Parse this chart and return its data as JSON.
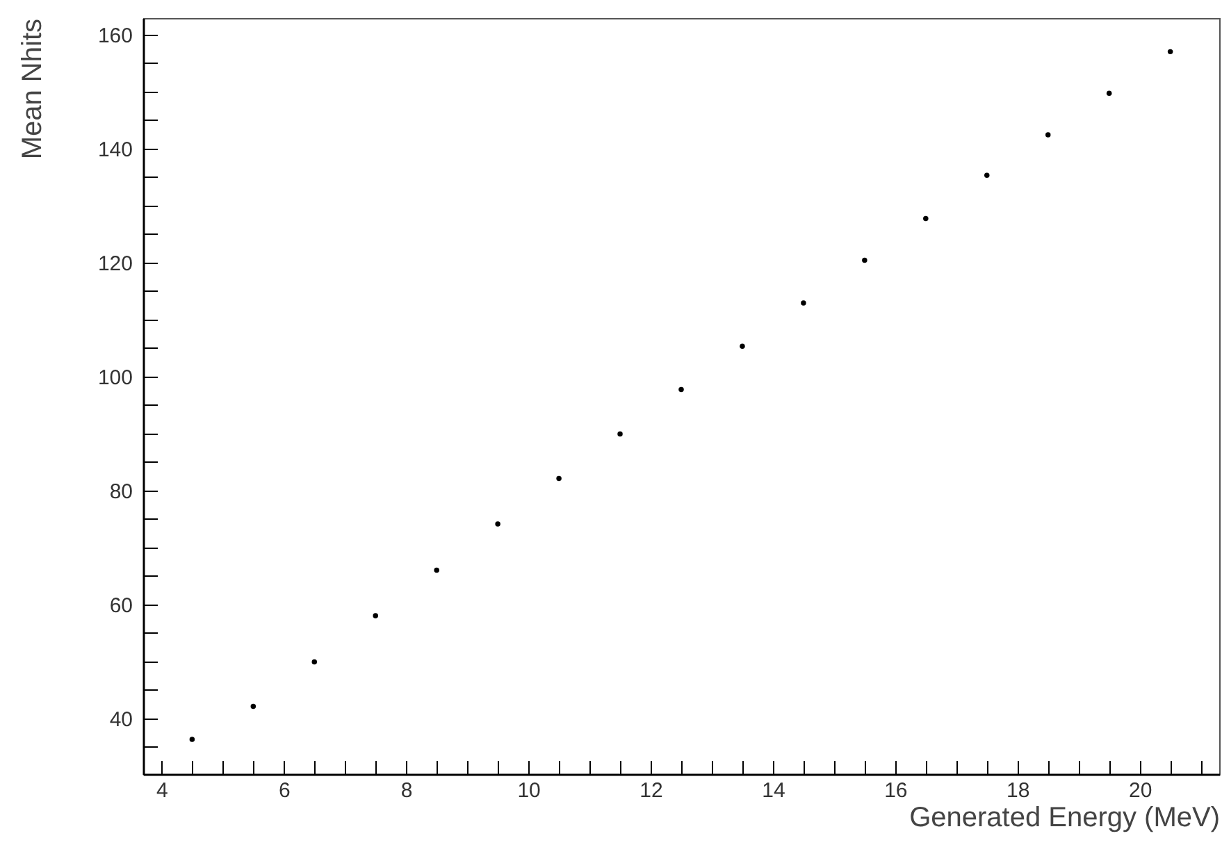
{
  "chart_data": {
    "type": "scatter",
    "xlabel": "Generated Energy (MeV)",
    "ylabel": "Mean Nhits",
    "x": [
      4.5,
      5.5,
      6.5,
      7.5,
      8.5,
      9.5,
      10.5,
      11.5,
      12.5,
      13.5,
      14.5,
      15.5,
      16.5,
      17.5,
      18.5,
      19.5,
      20.5
    ],
    "series": [
      {
        "color": "#000000",
        "values": [
          36.3,
          42.1,
          49.9,
          58.0,
          66.0,
          74.1,
          82.1,
          89.9,
          97.7,
          105.3,
          112.9,
          120.4,
          127.7,
          135.3,
          142.4,
          149.7,
          157.0
        ]
      }
    ],
    "xlim": [
      3.7,
      21.3
    ],
    "ylim": [
      30.2,
      162.9
    ],
    "xticks": [
      4,
      {
        "value": 4.5,
        "label": null
      },
      {
        "value": 5,
        "label": null
      },
      {
        "value": 5.5,
        "label": null
      },
      6,
      {
        "value": 6.5,
        "label": null
      },
      {
        "value": 7,
        "label": null
      },
      {
        "value": 7.5,
        "label": null
      },
      8,
      {
        "value": 8.5,
        "label": null
      },
      {
        "value": 9,
        "label": null
      },
      {
        "value": 9.5,
        "label": null
      },
      10,
      {
        "value": 10.5,
        "label": null
      },
      {
        "value": 11,
        "label": null
      },
      {
        "value": 11.5,
        "label": null
      },
      12,
      {
        "value": 12.5,
        "label": null
      },
      {
        "value": 13,
        "label": null
      },
      {
        "value": 13.5,
        "label": null
      },
      14,
      {
        "value": 14.5,
        "label": null
      },
      {
        "value": 15,
        "label": null
      },
      {
        "value": 15.5,
        "label": null
      },
      16,
      {
        "value": 16.5,
        "label": null
      },
      {
        "value": 17,
        "label": null
      },
      {
        "value": 17.5,
        "label": null
      },
      18,
      {
        "value": 18.5,
        "label": null
      },
      {
        "value": 19,
        "label": null
      },
      {
        "value": 19.5,
        "label": null
      },
      20,
      {
        "value": 20.5,
        "label": null
      },
      {
        "value": 21,
        "label": null
      }
    ],
    "yticks": [
      {
        "value": 35,
        "label": null
      },
      40,
      {
        "value": 45,
        "label": null
      },
      {
        "value": 50,
        "label": null
      },
      {
        "value": 55,
        "label": null
      },
      60,
      {
        "value": 65,
        "label": null
      },
      {
        "value": 70,
        "label": null
      },
      {
        "value": 75,
        "label": null
      },
      80,
      {
        "value": 85,
        "label": null
      },
      {
        "value": 90,
        "label": null
      },
      {
        "value": 95,
        "label": null
      },
      100,
      {
        "value": 105,
        "label": null
      },
      {
        "value": 110,
        "label": null
      },
      {
        "value": 115,
        "label": null
      },
      120,
      {
        "value": 125,
        "label": null
      },
      {
        "value": 130,
        "label": null
      },
      {
        "value": 135,
        "label": null
      },
      140,
      {
        "value": 145,
        "label": null
      },
      {
        "value": 150,
        "label": null
      },
      {
        "value": 155,
        "label": null
      },
      160
    ],
    "grid": false,
    "marker": "circle"
  }
}
